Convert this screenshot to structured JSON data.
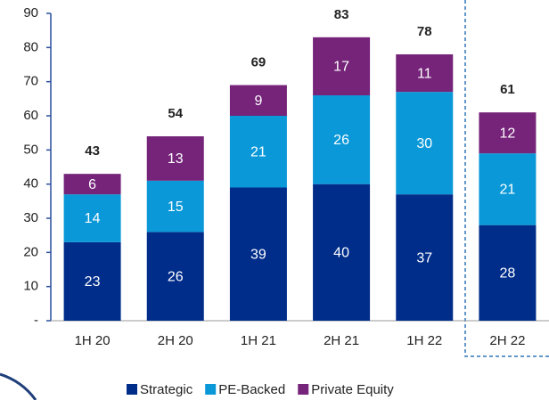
{
  "chart_data": {
    "type": "stacked_bar",
    "categories": [
      "1H 20",
      "2H 20",
      "1H 21",
      "2H 21",
      "1H 22",
      "2H 22"
    ],
    "series": [
      {
        "name": "Strategic",
        "color": "#002d8a",
        "values": [
          23,
          26,
          39,
          40,
          37,
          28
        ]
      },
      {
        "name": "PE-Backed",
        "color": "#0a98d8",
        "values": [
          14,
          15,
          21,
          26,
          30,
          21
        ]
      },
      {
        "name": "Private Equity",
        "color": "#752479",
        "values": [
          6,
          13,
          9,
          17,
          11,
          12
        ]
      }
    ],
    "totals": [
      43,
      54,
      69,
      83,
      78,
      61
    ],
    "ylim": [
      0,
      90
    ],
    "yticks": [
      {
        "value": 0,
        "label": "-"
      },
      10,
      20,
      30,
      40,
      50,
      60,
      70,
      80,
      90
    ],
    "legend": "bottom"
  }
}
